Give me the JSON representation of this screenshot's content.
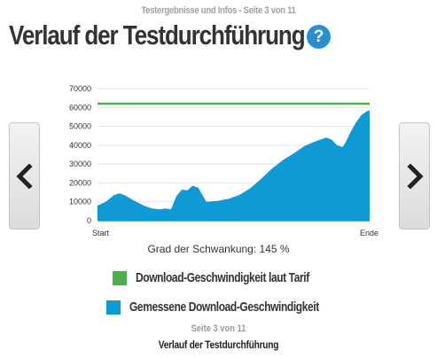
{
  "header": {
    "caption": "Testergebnisse und Infos - Seite 3 von 11",
    "title": "Verlauf der Testdurchführung",
    "help_glyph": "?",
    "help_color": "#2a8fd1"
  },
  "navigation": {
    "prev_icon": "chevron-left-icon",
    "next_icon": "chevron-right-icon"
  },
  "chart_data": {
    "type": "area",
    "title": "",
    "xlabel": "",
    "ylabel": "",
    "ylim": [
      0,
      70000
    ],
    "yticks": [
      0,
      10000,
      20000,
      30000,
      40000,
      50000,
      60000,
      70000
    ],
    "ytick_labels": [
      "0",
      "10000",
      "20000",
      "30000",
      "40000",
      "50000",
      "60000",
      "70000"
    ],
    "x_range": [
      0,
      100
    ],
    "x_labels": [
      "Start",
      "Ende"
    ],
    "grid": true,
    "series": [
      {
        "name": "Download-Geschwindigkeit laut Tarif",
        "kind": "line",
        "color": "#4cae4c",
        "x": [
          0,
          100
        ],
        "values": [
          62000,
          62000
        ]
      },
      {
        "name": "Gemessene Download-Geschwindigkeit",
        "kind": "area",
        "color": "#0f9ad6",
        "x": [
          0,
          3,
          6,
          8,
          10,
          13,
          17,
          20,
          23,
          25,
          27,
          29,
          31,
          33,
          35,
          37,
          40,
          44,
          48,
          52,
          56,
          60,
          64,
          68,
          72,
          76,
          80,
          84,
          86,
          88,
          90,
          91,
          93,
          95,
          97,
          99,
          100
        ],
        "values": [
          8000,
          10000,
          13500,
          14500,
          13500,
          11000,
          8000,
          6500,
          6000,
          6500,
          6000,
          13000,
          16500,
          16000,
          18500,
          17500,
          10000,
          10500,
          11500,
          13500,
          17000,
          22000,
          27500,
          32000,
          35500,
          39500,
          42000,
          44000,
          43000,
          40000,
          39000,
          41000,
          47000,
          52000,
          56000,
          58000,
          58500
        ]
      }
    ]
  },
  "variation": {
    "text": "Grad der Schwankung: 145 %"
  },
  "legend": [
    {
      "label": "Download-Geschwindigkeit laut Tarif",
      "color": "#4cae4c"
    },
    {
      "label": "Gemessene Download-Geschwindigkeit",
      "color": "#0f9ad6"
    }
  ],
  "footer": {
    "page": "Seite 3 von 11",
    "title": "Verlauf der Testdurchführung"
  }
}
